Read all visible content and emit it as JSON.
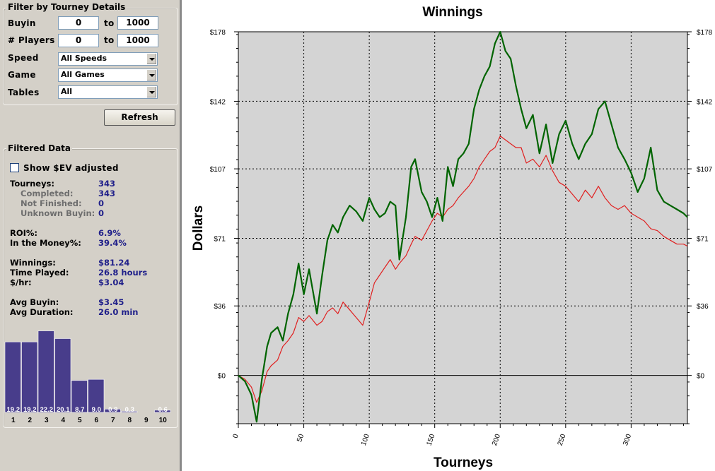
{
  "filter": {
    "title": "Filter by Tourney Details",
    "buyin_label": "Buyin",
    "buyin_from": "0",
    "to_label": "to",
    "buyin_to": "1000",
    "players_label": "# Players",
    "players_from": "0",
    "players_to": "1000",
    "speed_label": "Speed",
    "speed_value": "All Speeds",
    "game_label": "Game",
    "game_value": "All Games",
    "tables_label": "Tables",
    "tables_value": "All",
    "refresh": "Refresh"
  },
  "filtered": {
    "title": "Filtered Data",
    "show_ev": "Show $EV adjusted",
    "show_ev_checked": false,
    "stats": [
      {
        "label": "Tourneys:",
        "value": "343",
        "sub": false
      },
      {
        "label": "Completed:",
        "value": "343",
        "sub": true
      },
      {
        "label": "Not Finished:",
        "value": "0",
        "sub": true
      },
      {
        "label": "Unknown Buyin:",
        "value": "0",
        "sub": true
      },
      {
        "label": "ROI%:",
        "value": "6.9%",
        "sub": false
      },
      {
        "label": "In the Money%:",
        "value": "39.4%",
        "sub": false
      },
      {
        "label": "Winnings:",
        "value": "$81.24",
        "sub": false
      },
      {
        "label": "Time Played:",
        "value": "26.8  hours",
        "sub": false
      },
      {
        "label": "$/hr:",
        "value": "$3.04",
        "sub": false
      },
      {
        "label": "Avg Buyin:",
        "value": "$3.45",
        "sub": false
      },
      {
        "label": "Avg Duration:",
        "value": "26.0  min",
        "sub": false
      }
    ]
  },
  "histogram": {
    "bar_color": "#483d8b",
    "positions": [
      "1",
      "2",
      "3",
      "4",
      "5",
      "6",
      "7",
      "8",
      "9",
      "10"
    ],
    "values": [
      19.2,
      19.2,
      22.2,
      20.1,
      8.7,
      9.0,
      0.9,
      0.3,
      0,
      0.6
    ],
    "value_labels": [
      "19.2",
      "19.2",
      "22.2",
      "20.1",
      "8.7",
      "9.0",
      "0.9",
      "0.3",
      "",
      "0.6"
    ]
  },
  "chart_data": {
    "type": "line",
    "title": "Winnings",
    "xlabel": "Tourneys",
    "ylabel": "Dollars",
    "xlim": [
      0,
      343
    ],
    "ylim": [
      -25,
      178
    ],
    "y_ticks": [
      0,
      36,
      71,
      107,
      142,
      178
    ],
    "y_tick_labels": [
      "$0",
      "$36",
      "$71",
      "$107",
      "$142",
      "$178"
    ],
    "x_ticks": [
      0,
      50,
      100,
      150,
      200,
      250,
      300
    ],
    "x_tick_labels": [
      "0",
      "50",
      "100",
      "150",
      "200",
      "250",
      "300"
    ],
    "grid": true,
    "background": "#d4d4d4",
    "series": [
      {
        "color": "#006400",
        "x": [
          0,
          5,
          10,
          14,
          18,
          22,
          25,
          30,
          34,
          38,
          42,
          46,
          50,
          54,
          60,
          64,
          68,
          72,
          76,
          80,
          85,
          90,
          95,
          100,
          104,
          108,
          112,
          116,
          120,
          123,
          128,
          132,
          135,
          140,
          144,
          148,
          152,
          156,
          160,
          164,
          168,
          172,
          176,
          180,
          184,
          188,
          192,
          196,
          200,
          204,
          208,
          212,
          216,
          220,
          225,
          230,
          235,
          240,
          245,
          250,
          255,
          260,
          265,
          270,
          275,
          280,
          285,
          290,
          295,
          300,
          305,
          310,
          315,
          320,
          325,
          330,
          335,
          340,
          343
        ],
        "y": [
          0,
          -3,
          -10,
          -24,
          -2,
          15,
          22,
          25,
          18,
          32,
          42,
          58,
          42,
          55,
          32,
          52,
          70,
          78,
          74,
          82,
          88,
          85,
          80,
          92,
          86,
          82,
          84,
          90,
          88,
          60,
          82,
          108,
          112,
          95,
          90,
          82,
          92,
          80,
          108,
          98,
          112,
          115,
          120,
          138,
          148,
          155,
          160,
          172,
          178,
          168,
          164,
          150,
          138,
          128,
          135,
          115,
          130,
          110,
          125,
          132,
          120,
          112,
          120,
          125,
          138,
          142,
          130,
          118,
          112,
          105,
          95,
          102,
          118,
          96,
          90,
          88,
          86,
          84,
          82
        ]
      },
      {
        "color": "#e02020",
        "x": [
          0,
          5,
          10,
          14,
          18,
          22,
          25,
          30,
          34,
          38,
          42,
          46,
          50,
          54,
          60,
          64,
          68,
          72,
          76,
          80,
          85,
          90,
          95,
          100,
          104,
          108,
          112,
          116,
          120,
          123,
          128,
          132,
          135,
          140,
          144,
          148,
          152,
          156,
          160,
          164,
          168,
          172,
          176,
          180,
          184,
          188,
          192,
          196,
          200,
          204,
          208,
          212,
          216,
          220,
          225,
          230,
          235,
          240,
          245,
          250,
          255,
          260,
          265,
          270,
          275,
          280,
          285,
          290,
          295,
          300,
          305,
          310,
          315,
          320,
          325,
          330,
          335,
          340,
          343
        ],
        "y": [
          0,
          -2,
          -6,
          -14,
          -8,
          2,
          5,
          8,
          15,
          18,
          22,
          30,
          28,
          31,
          26,
          28,
          33,
          35,
          32,
          38,
          34,
          30,
          26,
          38,
          48,
          52,
          56,
          60,
          55,
          58,
          62,
          68,
          72,
          70,
          75,
          80,
          84,
          82,
          86,
          88,
          92,
          95,
          98,
          102,
          108,
          112,
          116,
          118,
          124,
          122,
          120,
          118,
          118,
          110,
          112,
          108,
          114,
          106,
          100,
          98,
          94,
          90,
          96,
          92,
          98,
          92,
          88,
          86,
          88,
          84,
          82,
          80,
          76,
          75,
          72,
          70,
          68,
          68,
          67
        ]
      }
    ]
  }
}
